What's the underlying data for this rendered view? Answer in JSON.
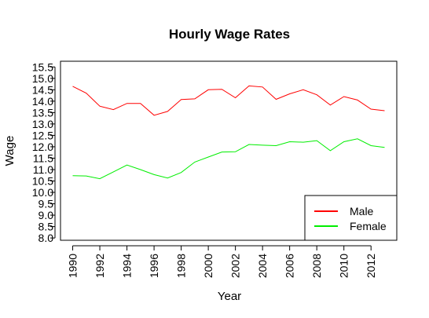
{
  "chart_data": {
    "type": "line",
    "title": "Hourly Wage Rates",
    "xlabel": "Year",
    "ylabel": "Wage",
    "x": [
      1990,
      1991,
      1992,
      1993,
      1994,
      1995,
      1996,
      1997,
      1998,
      1999,
      2000,
      2001,
      2002,
      2003,
      2004,
      2005,
      2006,
      2007,
      2008,
      2009,
      2010,
      2011,
      2012,
      2013
    ],
    "xticks": [
      "1990",
      "1992",
      "1994",
      "1996",
      "1998",
      "2000",
      "2002",
      "2004",
      "2006",
      "2008",
      "2010",
      "2012"
    ],
    "yticks": [
      "8.0",
      "8.5",
      "9.0",
      "9.5",
      "10.0",
      "10.5",
      "11.0",
      "11.5",
      "12.0",
      "12.5",
      "13.0",
      "13.5",
      "14.0",
      "14.5",
      "15.0",
      "15.5"
    ],
    "xlim": [
      1989.1,
      2013.9
    ],
    "ylim": [
      7.9,
      15.75
    ],
    "grid": false,
    "legend_position": "bottom-right",
    "series": [
      {
        "name": "Male",
        "color": "#ff0000",
        "values": [
          14.65,
          14.35,
          13.78,
          13.63,
          13.9,
          13.9,
          13.38,
          13.55,
          14.07,
          14.1,
          14.5,
          14.52,
          14.15,
          14.67,
          14.62,
          14.08,
          14.32,
          14.5,
          14.28,
          13.83,
          14.2,
          14.05,
          13.65,
          13.58
        ]
      },
      {
        "name": "Female",
        "color": "#00ee00",
        "values": [
          10.73,
          10.72,
          10.6,
          10.9,
          11.2,
          11.0,
          10.78,
          10.63,
          10.87,
          11.33,
          11.55,
          11.77,
          11.78,
          12.1,
          12.07,
          12.05,
          12.22,
          12.2,
          12.27,
          11.83,
          12.22,
          12.35,
          12.05,
          11.97
        ]
      }
    ]
  }
}
